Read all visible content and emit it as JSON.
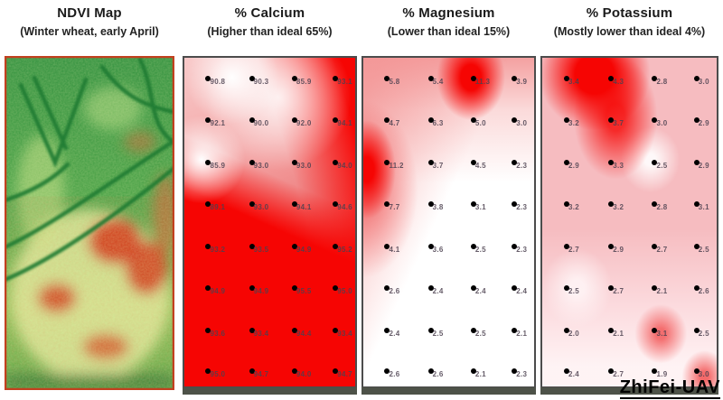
{
  "watermark": "ZhiFei-UAV",
  "panels": [
    {
      "id": "ndvi",
      "title": "NDVI Map",
      "subtitle": "(Winter wheat, early April)"
    },
    {
      "id": "calcium",
      "title": "% Calcium",
      "subtitle": "(Higher than ideal 65%)",
      "values": [
        [
          "90.8",
          "90.3",
          "85.9",
          "93.1"
        ],
        [
          "92.1",
          "90.0",
          "92.0",
          "94.1"
        ],
        [
          "85.9",
          "93.0",
          "93.0",
          "94.0"
        ],
        [
          "89.1",
          "93.0",
          "94.1",
          "94.6"
        ],
        [
          "93.2",
          "93.5",
          "94.9",
          "95.2"
        ],
        [
          "94.9",
          "94.9",
          "95.5",
          "95.0"
        ],
        [
          "93.6",
          "93.4",
          "94.4",
          "93.4"
        ],
        [
          "95.0",
          "94.7",
          "94.0",
          "94.7"
        ]
      ]
    },
    {
      "id": "magnesium",
      "title": "% Magnesium",
      "subtitle": "(Lower than ideal 15%)",
      "values": [
        [
          "5.8",
          "5.4",
          "11.3",
          "3.9"
        ],
        [
          "4.7",
          "6.3",
          "5.0",
          "3.0"
        ],
        [
          "11.2",
          "3.7",
          "4.5",
          "2.3"
        ],
        [
          "7.7",
          "3.8",
          "3.1",
          "2.3"
        ],
        [
          "4.1",
          "3.6",
          "2.5",
          "2.3"
        ],
        [
          "2.6",
          "2.4",
          "2.4",
          "2.4"
        ],
        [
          "2.4",
          "2.5",
          "2.5",
          "2.1"
        ],
        [
          "2.6",
          "2.6",
          "2.1",
          "2.3"
        ]
      ]
    },
    {
      "id": "potassium",
      "title": "% Potassium",
      "subtitle": "(Mostly lower than ideal 4%)",
      "values": [
        [
          "3.4",
          "4.3",
          "2.8",
          "3.0"
        ],
        [
          "3.2",
          "3.7",
          "3.0",
          "2.9"
        ],
        [
          "2.9",
          "3.3",
          "2.5",
          "2.9"
        ],
        [
          "3.2",
          "3.2",
          "2.8",
          "3.1"
        ],
        [
          "2.7",
          "2.9",
          "2.7",
          "2.5"
        ],
        [
          "2.5",
          "2.7",
          "2.1",
          "2.6"
        ],
        [
          "2.0",
          "2.1",
          "3.1",
          "2.5"
        ],
        [
          "2.4",
          "2.7",
          "1.9",
          "3.0"
        ]
      ]
    }
  ],
  "colors": {
    "hot_red": "#f60503",
    "pink": "#f4a9a9",
    "ndvi_green": "#3f9a42",
    "ndvi_yellow": "#e3eda0",
    "ndvi_red": "#cf2f10",
    "border_gray": "#4c4c4c"
  },
  "chart_data": [
    {
      "type": "heatmap",
      "title": "NDVI Map",
      "subtitle": "(Winter wheat, early April)",
      "description": "UAV NDVI raster of a winter wheat field: mostly green (healthy) in the upper half with dark-green wheel-track curves, yellow-green lower half with red low-vigor patches concentrated bottom-center and right."
    },
    {
      "type": "heatmap",
      "title": "% Calcium",
      "subtitle": "(Higher than ideal 65%)",
      "grid": {
        "cols": 4,
        "rows": 8
      },
      "values": [
        [
          90.8,
          90.3,
          85.9,
          93.1
        ],
        [
          92.1,
          90.0,
          92.0,
          94.1
        ],
        [
          85.9,
          93.0,
          93.0,
          94.0
        ],
        [
          89.1,
          93.0,
          94.1,
          94.6
        ],
        [
          93.2,
          93.5,
          94.9,
          95.2
        ],
        [
          94.9,
          94.9,
          95.5,
          95.0
        ],
        [
          93.6,
          93.4,
          94.4,
          93.4
        ],
        [
          95.0,
          94.7,
          94.0,
          94.7
        ]
      ],
      "value_range_shown": [
        85.9,
        95.5
      ],
      "legend_position": "none",
      "color_scale": "white (lower) to red (higher)"
    },
    {
      "type": "heatmap",
      "title": "% Magnesium",
      "subtitle": "(Lower than ideal 15%)",
      "grid": {
        "cols": 4,
        "rows": 8
      },
      "values": [
        [
          5.8,
          5.4,
          11.3,
          3.9
        ],
        [
          4.7,
          6.3,
          5.0,
          3.0
        ],
        [
          11.2,
          3.7,
          4.5,
          2.3
        ],
        [
          7.7,
          3.8,
          3.1,
          2.3
        ],
        [
          4.1,
          3.6,
          2.5,
          2.3
        ],
        [
          2.6,
          2.4,
          2.4,
          2.4
        ],
        [
          2.4,
          2.5,
          2.5,
          2.1
        ],
        [
          2.6,
          2.6,
          2.1,
          2.3
        ]
      ],
      "value_range_shown": [
        2.1,
        11.3
      ],
      "legend_position": "none",
      "color_scale": "white (lower) to red (higher)"
    },
    {
      "type": "heatmap",
      "title": "% Potassium",
      "subtitle": "(Mostly lower than ideal 4%)",
      "grid": {
        "cols": 4,
        "rows": 8
      },
      "values": [
        [
          3.4,
          4.3,
          2.8,
          3.0
        ],
        [
          3.2,
          3.7,
          3.0,
          2.9
        ],
        [
          2.9,
          3.3,
          2.5,
          2.9
        ],
        [
          3.2,
          3.2,
          2.8,
          3.1
        ],
        [
          2.7,
          2.9,
          2.7,
          2.5
        ],
        [
          2.5,
          2.7,
          2.1,
          2.6
        ],
        [
          2.0,
          2.1,
          3.1,
          2.5
        ],
        [
          2.4,
          2.7,
          1.9,
          3.0
        ]
      ],
      "value_range_shown": [
        1.9,
        4.3
      ],
      "legend_position": "none",
      "color_scale": "white (lower) to red (higher)"
    }
  ]
}
